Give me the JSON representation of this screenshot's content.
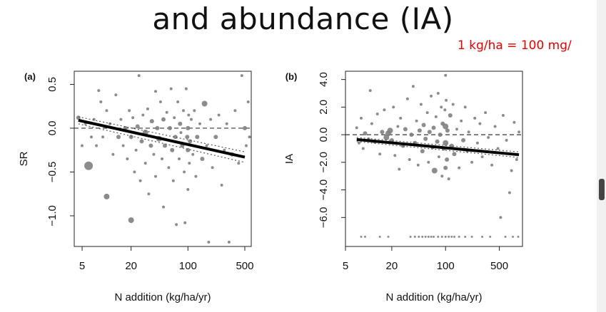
{
  "slide": {
    "title": "and abundance (IA)",
    "note": "1 kg/ha = 100 mg/"
  },
  "chart_data": [
    {
      "type": "scatter",
      "panel_label": "(a)",
      "xlabel": "N addition (kg/ha/yr)",
      "ylabel": "SR",
      "x_scale": "log",
      "xlim": [
        4,
        600
      ],
      "ylim": [
        -1.35,
        0.65
      ],
      "x_ticks": [
        5,
        20,
        100,
        500
      ],
      "x_tick_labels": [
        "5",
        "20",
        "100",
        "500"
      ],
      "y_ticks": [
        -1.0,
        -0.5,
        0.0,
        0.5
      ],
      "y_tick_labels": [
        "−1.0",
        "−0.5",
        "0.0",
        "0.5"
      ],
      "zero_line": true,
      "regression": {
        "x": [
          4.5,
          500
        ],
        "y": [
          0.09,
          -0.33
        ]
      },
      "ci_upper": {
        "x": [
          4.5,
          500
        ],
        "y": [
          0.13,
          -0.27
        ]
      },
      "ci_lower": {
        "x": [
          4.5,
          500
        ],
        "y": [
          0.05,
          -0.39
        ]
      },
      "points": [
        {
          "x": 4.5,
          "y": 0.12,
          "s": 3
        },
        {
          "x": 5,
          "y": -0.2,
          "s": 2
        },
        {
          "x": 5.5,
          "y": 0.05,
          "s": 2
        },
        {
          "x": 6,
          "y": -0.43,
          "s": 6
        },
        {
          "x": 6.5,
          "y": -0.1,
          "s": 2
        },
        {
          "x": 7,
          "y": 0.1,
          "s": 2
        },
        {
          "x": 7.5,
          "y": -0.2,
          "s": 2
        },
        {
          "x": 8,
          "y": 0.43,
          "s": 2
        },
        {
          "x": 8.5,
          "y": 0.3,
          "s": 2
        },
        {
          "x": 9,
          "y": -0.1,
          "s": 2
        },
        {
          "x": 10,
          "y": -0.78,
          "s": 4
        },
        {
          "x": 10,
          "y": 0.2,
          "s": 2
        },
        {
          "x": 11,
          "y": 0.05,
          "s": 2
        },
        {
          "x": 12,
          "y": -0.3,
          "s": 2
        },
        {
          "x": 13,
          "y": 0.38,
          "s": 2
        },
        {
          "x": 14,
          "y": -0.1,
          "s": 3
        },
        {
          "x": 15,
          "y": 0.1,
          "s": 2
        },
        {
          "x": 16,
          "y": -0.2,
          "s": 2
        },
        {
          "x": 17,
          "y": 0.0,
          "s": 3
        },
        {
          "x": 18,
          "y": -0.35,
          "s": 2
        },
        {
          "x": 19,
          "y": 0.2,
          "s": 2
        },
        {
          "x": 20,
          "y": -1.05,
          "s": 4
        },
        {
          "x": 20,
          "y": -0.1,
          "s": 3
        },
        {
          "x": 21,
          "y": 0.12,
          "s": 2
        },
        {
          "x": 22,
          "y": -0.5,
          "s": 2
        },
        {
          "x": 23,
          "y": -0.25,
          "s": 2
        },
        {
          "x": 24,
          "y": 0.02,
          "s": 3
        },
        {
          "x": 25,
          "y": 0.6,
          "s": 2
        },
        {
          "x": 26,
          "y": -0.6,
          "s": 2
        },
        {
          "x": 27,
          "y": -0.15,
          "s": 3
        },
        {
          "x": 28,
          "y": 0.15,
          "s": 2
        },
        {
          "x": 30,
          "y": -0.05,
          "s": 4
        },
        {
          "x": 30,
          "y": -0.4,
          "s": 2
        },
        {
          "x": 32,
          "y": 0.22,
          "s": 2
        },
        {
          "x": 33,
          "y": -0.75,
          "s": 2
        },
        {
          "x": 35,
          "y": -0.2,
          "s": 3
        },
        {
          "x": 36,
          "y": 0.08,
          "s": 3
        },
        {
          "x": 38,
          "y": -0.3,
          "s": 2
        },
        {
          "x": 40,
          "y": 0.42,
          "s": 2
        },
        {
          "x": 40,
          "y": -0.55,
          "s": 2
        },
        {
          "x": 42,
          "y": 0.0,
          "s": 3
        },
        {
          "x": 44,
          "y": -0.12,
          "s": 4
        },
        {
          "x": 46,
          "y": 0.3,
          "s": 2
        },
        {
          "x": 48,
          "y": -0.35,
          "s": 2
        },
        {
          "x": 50,
          "y": 0.1,
          "s": 3
        },
        {
          "x": 50,
          "y": -0.9,
          "s": 2
        },
        {
          "x": 52,
          "y": -0.2,
          "s": 3
        },
        {
          "x": 55,
          "y": 0.18,
          "s": 2
        },
        {
          "x": 58,
          "y": -0.45,
          "s": 2
        },
        {
          "x": 60,
          "y": 0.0,
          "s": 3
        },
        {
          "x": 62,
          "y": 0.45,
          "s": 2
        },
        {
          "x": 64,
          "y": -0.25,
          "s": 3
        },
        {
          "x": 66,
          "y": -0.6,
          "s": 2
        },
        {
          "x": 68,
          "y": 0.12,
          "s": 2
        },
        {
          "x": 70,
          "y": -0.1,
          "s": 3
        },
        {
          "x": 72,
          "y": -1.1,
          "s": 2
        },
        {
          "x": 75,
          "y": 0.3,
          "s": 2
        },
        {
          "x": 78,
          "y": -0.35,
          "s": 2
        },
        {
          "x": 80,
          "y": 0.05,
          "s": 3
        },
        {
          "x": 82,
          "y": -0.05,
          "s": 2
        },
        {
          "x": 85,
          "y": -0.2,
          "s": 3
        },
        {
          "x": 88,
          "y": 0.2,
          "s": 2
        },
        {
          "x": 90,
          "y": -0.5,
          "s": 2
        },
        {
          "x": 92,
          "y": -1.08,
          "s": 2
        },
        {
          "x": 95,
          "y": 0.45,
          "s": 2
        },
        {
          "x": 98,
          "y": -0.1,
          "s": 3
        },
        {
          "x": 100,
          "y": 0.0,
          "s": 3
        },
        {
          "x": 100,
          "y": -0.25,
          "s": 3
        },
        {
          "x": 100,
          "y": -0.7,
          "s": 2
        },
        {
          "x": 102,
          "y": 0.15,
          "s": 2
        },
        {
          "x": 104,
          "y": -0.4,
          "s": 2
        },
        {
          "x": 106,
          "y": -0.15,
          "s": 3
        },
        {
          "x": 110,
          "y": 0.1,
          "s": 2
        },
        {
          "x": 115,
          "y": -0.3,
          "s": 2
        },
        {
          "x": 120,
          "y": 0.2,
          "s": 2
        },
        {
          "x": 125,
          "y": -0.55,
          "s": 2
        },
        {
          "x": 130,
          "y": -0.1,
          "s": 3
        },
        {
          "x": 140,
          "y": 0.05,
          "s": 2
        },
        {
          "x": 150,
          "y": -0.35,
          "s": 3
        },
        {
          "x": 160,
          "y": 0.28,
          "s": 4
        },
        {
          "x": 170,
          "y": -0.2,
          "s": 2
        },
        {
          "x": 180,
          "y": -1.3,
          "s": 2
        },
        {
          "x": 190,
          "y": 0.1,
          "s": 2
        },
        {
          "x": 200,
          "y": -0.45,
          "s": 2
        },
        {
          "x": 220,
          "y": -0.1,
          "s": 3
        },
        {
          "x": 240,
          "y": 0.15,
          "s": 2
        },
        {
          "x": 260,
          "y": -0.65,
          "s": 2
        },
        {
          "x": 280,
          "y": -0.25,
          "s": 2
        },
        {
          "x": 300,
          "y": 0.05,
          "s": 2
        },
        {
          "x": 320,
          "y": -1.3,
          "s": 2
        },
        {
          "x": 350,
          "y": -0.3,
          "s": 3
        },
        {
          "x": 380,
          "y": 0.2,
          "s": 2
        },
        {
          "x": 420,
          "y": -0.4,
          "s": 2
        },
        {
          "x": 460,
          "y": 0.6,
          "s": 2
        },
        {
          "x": 500,
          "y": 0.0,
          "s": 3
        },
        {
          "x": 520,
          "y": -0.2,
          "s": 2
        },
        {
          "x": 550,
          "y": 0.3,
          "s": 2
        },
        {
          "x": 570,
          "y": -0.1,
          "s": 2
        }
      ]
    },
    {
      "type": "scatter",
      "panel_label": "(b)",
      "xlabel": "N addition (kg/ha/yr)",
      "ylabel": "IA",
      "x_scale": "log",
      "xlim": [
        5,
        1000
      ],
      "ylim": [
        -8.1,
        4.6
      ],
      "x_ticks": [
        5,
        20,
        100,
        500
      ],
      "x_tick_labels": [
        "5",
        "20",
        "100",
        "500"
      ],
      "y_ticks": [
        -6.0,
        -4.0,
        -2.0,
        0.0,
        2.0,
        4.0
      ],
      "y_tick_labels": [
        "−6.0",
        "−4.0",
        "−2.0",
        "0.0",
        "2.0",
        "4.0"
      ],
      "zero_line": true,
      "regression": {
        "x": [
          7,
          900
        ],
        "y": [
          -0.35,
          -1.45
        ]
      },
      "ci_upper": {
        "x": [
          7,
          900
        ],
        "y": [
          -0.2,
          -1.25
        ]
      },
      "ci_lower": {
        "x": [
          7,
          900
        ],
        "y": [
          -0.5,
          -1.65
        ]
      },
      "points": [
        {
          "x": 7,
          "y": 0.5,
          "s": 2
        },
        {
          "x": 7.5,
          "y": -0.6,
          "s": 2
        },
        {
          "x": 8,
          "y": 1.2,
          "s": 2
        },
        {
          "x": 8.5,
          "y": -1.0,
          "s": 2
        },
        {
          "x": 9,
          "y": 0.1,
          "s": 3
        },
        {
          "x": 10,
          "y": -0.3,
          "s": 2
        },
        {
          "x": 10.5,
          "y": 3.2,
          "s": 2
        },
        {
          "x": 11,
          "y": 0.8,
          "s": 2
        },
        {
          "x": 12,
          "y": -0.5,
          "s": 3
        },
        {
          "x": 13,
          "y": 1.5,
          "s": 2
        },
        {
          "x": 14,
          "y": -1.4,
          "s": 2
        },
        {
          "x": 15,
          "y": 0.2,
          "s": 3
        },
        {
          "x": 16,
          "y": 1.8,
          "s": 2
        },
        {
          "x": 17,
          "y": -0.2,
          "s": 4
        },
        {
          "x": 18,
          "y": 0.1,
          "s": 4
        },
        {
          "x": 19,
          "y": 0.3,
          "s": 4
        },
        {
          "x": 20,
          "y": -0.4,
          "s": 3
        },
        {
          "x": 21,
          "y": 2.0,
          "s": 2
        },
        {
          "x": 22,
          "y": -1.5,
          "s": 2
        },
        {
          "x": 24,
          "y": 0.6,
          "s": 2
        },
        {
          "x": 25,
          "y": -2.5,
          "s": 2
        },
        {
          "x": 26,
          "y": 1.2,
          "s": 2
        },
        {
          "x": 28,
          "y": -0.8,
          "s": 3
        },
        {
          "x": 30,
          "y": 0.4,
          "s": 3
        },
        {
          "x": 32,
          "y": 2.6,
          "s": 2
        },
        {
          "x": 34,
          "y": -1.8,
          "s": 2
        },
        {
          "x": 36,
          "y": 0.0,
          "s": 3
        },
        {
          "x": 38,
          "y": 3.5,
          "s": 2
        },
        {
          "x": 40,
          "y": -0.6,
          "s": 3
        },
        {
          "x": 42,
          "y": 1.0,
          "s": 2
        },
        {
          "x": 44,
          "y": -2.2,
          "s": 2
        },
        {
          "x": 46,
          "y": 0.3,
          "s": 3
        },
        {
          "x": 48,
          "y": 2.2,
          "s": 2
        },
        {
          "x": 50,
          "y": -1.2,
          "s": 3
        },
        {
          "x": 52,
          "y": 0.7,
          "s": 3
        },
        {
          "x": 55,
          "y": -0.3,
          "s": 3
        },
        {
          "x": 58,
          "y": 1.6,
          "s": 2
        },
        {
          "x": 60,
          "y": -2.0,
          "s": 2
        },
        {
          "x": 62,
          "y": 0.2,
          "s": 3
        },
        {
          "x": 65,
          "y": 2.8,
          "s": 2
        },
        {
          "x": 68,
          "y": -0.9,
          "s": 3
        },
        {
          "x": 70,
          "y": 0.5,
          "s": 3
        },
        {
          "x": 72,
          "y": -2.6,
          "s": 4
        },
        {
          "x": 75,
          "y": 1.3,
          "s": 2
        },
        {
          "x": 78,
          "y": -0.5,
          "s": 3
        },
        {
          "x": 80,
          "y": 3.0,
          "s": 2
        },
        {
          "x": 82,
          "y": -1.6,
          "s": 2
        },
        {
          "x": 85,
          "y": 0.0,
          "s": 3
        },
        {
          "x": 88,
          "y": 2.0,
          "s": 2
        },
        {
          "x": 90,
          "y": -3.0,
          "s": 2
        },
        {
          "x": 92,
          "y": 0.8,
          "s": 3
        },
        {
          "x": 95,
          "y": -1.0,
          "s": 3
        },
        {
          "x": 98,
          "y": 1.8,
          "s": 2
        },
        {
          "x": 100,
          "y": 4.3,
          "s": 2
        },
        {
          "x": 100,
          "y": -0.6,
          "s": 4
        },
        {
          "x": 100,
          "y": 0.6,
          "s": 4
        },
        {
          "x": 100,
          "y": -2.4,
          "s": 3
        },
        {
          "x": 102,
          "y": 2.5,
          "s": 2
        },
        {
          "x": 104,
          "y": -1.8,
          "s": 3
        },
        {
          "x": 106,
          "y": 0.3,
          "s": 3
        },
        {
          "x": 110,
          "y": -3.2,
          "s": 2
        },
        {
          "x": 115,
          "y": 1.4,
          "s": 3
        },
        {
          "x": 120,
          "y": -0.8,
          "s": 3
        },
        {
          "x": 125,
          "y": 2.2,
          "s": 2
        },
        {
          "x": 130,
          "y": -1.4,
          "s": 3
        },
        {
          "x": 140,
          "y": 0.4,
          "s": 2
        },
        {
          "x": 150,
          "y": -2.4,
          "s": 2
        },
        {
          "x": 160,
          "y": 1.0,
          "s": 2
        },
        {
          "x": 170,
          "y": -0.4,
          "s": 3
        },
        {
          "x": 180,
          "y": 2.0,
          "s": 2
        },
        {
          "x": 190,
          "y": -1.2,
          "s": 2
        },
        {
          "x": 200,
          "y": 0.2,
          "s": 2
        },
        {
          "x": 220,
          "y": -2.0,
          "s": 2
        },
        {
          "x": 240,
          "y": 1.2,
          "s": 2
        },
        {
          "x": 260,
          "y": -0.6,
          "s": 2
        },
        {
          "x": 280,
          "y": 0.8,
          "s": 2
        },
        {
          "x": 300,
          "y": -1.6,
          "s": 2
        },
        {
          "x": 330,
          "y": 1.6,
          "s": 2
        },
        {
          "x": 360,
          "y": -0.2,
          "s": 2
        },
        {
          "x": 400,
          "y": -2.2,
          "s": 2
        },
        {
          "x": 440,
          "y": 0.6,
          "s": 2
        },
        {
          "x": 480,
          "y": -1.0,
          "s": 2
        },
        {
          "x": 520,
          "y": -6.0,
          "s": 2
        },
        {
          "x": 560,
          "y": 1.4,
          "s": 2
        },
        {
          "x": 620,
          "y": -0.4,
          "s": 2
        },
        {
          "x": 680,
          "y": -4.2,
          "s": 2
        },
        {
          "x": 720,
          "y": -2.6,
          "s": 2
        },
        {
          "x": 780,
          "y": 0.9,
          "s": 2
        },
        {
          "x": 840,
          "y": -1.8,
          "s": 2
        },
        {
          "x": 900,
          "y": 0.2,
          "s": 2
        },
        {
          "x": 8,
          "y": -7.4,
          "s": 1.5
        },
        {
          "x": 9,
          "y": -7.4,
          "s": 1.5
        },
        {
          "x": 14,
          "y": -7.4,
          "s": 1.5
        },
        {
          "x": 18,
          "y": -7.4,
          "s": 1.5
        },
        {
          "x": 35,
          "y": -7.4,
          "s": 1.5
        },
        {
          "x": 40,
          "y": -7.4,
          "s": 1.5
        },
        {
          "x": 45,
          "y": -7.4,
          "s": 1.5
        },
        {
          "x": 50,
          "y": -7.4,
          "s": 1.5
        },
        {
          "x": 55,
          "y": -7.4,
          "s": 1.5
        },
        {
          "x": 60,
          "y": -7.4,
          "s": 1.5
        },
        {
          "x": 65,
          "y": -7.4,
          "s": 1.5
        },
        {
          "x": 70,
          "y": -7.4,
          "s": 1.5
        },
        {
          "x": 80,
          "y": -7.4,
          "s": 1.5
        },
        {
          "x": 90,
          "y": -7.4,
          "s": 1.5
        },
        {
          "x": 100,
          "y": -7.4,
          "s": 1.5
        },
        {
          "x": 110,
          "y": -7.4,
          "s": 1.5
        },
        {
          "x": 120,
          "y": -7.4,
          "s": 1.5
        },
        {
          "x": 130,
          "y": -7.4,
          "s": 1.5
        },
        {
          "x": 150,
          "y": -7.4,
          "s": 1.5
        },
        {
          "x": 180,
          "y": -7.4,
          "s": 1.5
        },
        {
          "x": 220,
          "y": -7.4,
          "s": 1.5
        },
        {
          "x": 300,
          "y": -7.4,
          "s": 1.5
        },
        {
          "x": 380,
          "y": -7.4,
          "s": 1.5
        },
        {
          "x": 600,
          "y": -7.4,
          "s": 1.5
        },
        {
          "x": 750,
          "y": -7.4,
          "s": 1.5
        },
        {
          "x": 880,
          "y": -7.4,
          "s": 1.5
        }
      ]
    }
  ]
}
